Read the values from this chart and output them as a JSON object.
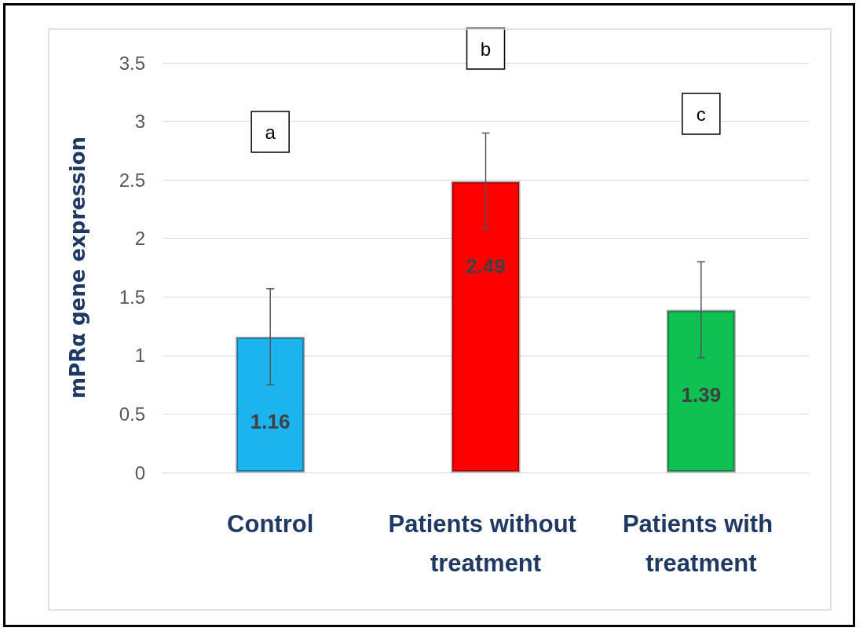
{
  "chart_data": {
    "type": "bar",
    "ylabel": "mPRα gene expression",
    "categories": [
      "Control",
      "Patients without treatment",
      "Patients with treatment"
    ],
    "values": [
      1.16,
      2.49,
      1.39
    ],
    "colors": [
      "#1cb4ee",
      "#ff0000",
      "#0fc052"
    ],
    "errors": [
      0.41,
      0.41,
      0.41
    ],
    "data_labels": true,
    "ylim": [
      0,
      3.5
    ],
    "yticks": [
      0,
      0.5,
      1,
      1.5,
      2,
      2.5,
      3,
      3.5
    ],
    "grid": "y",
    "annotations": [
      "a",
      "b",
      "c"
    ]
  }
}
